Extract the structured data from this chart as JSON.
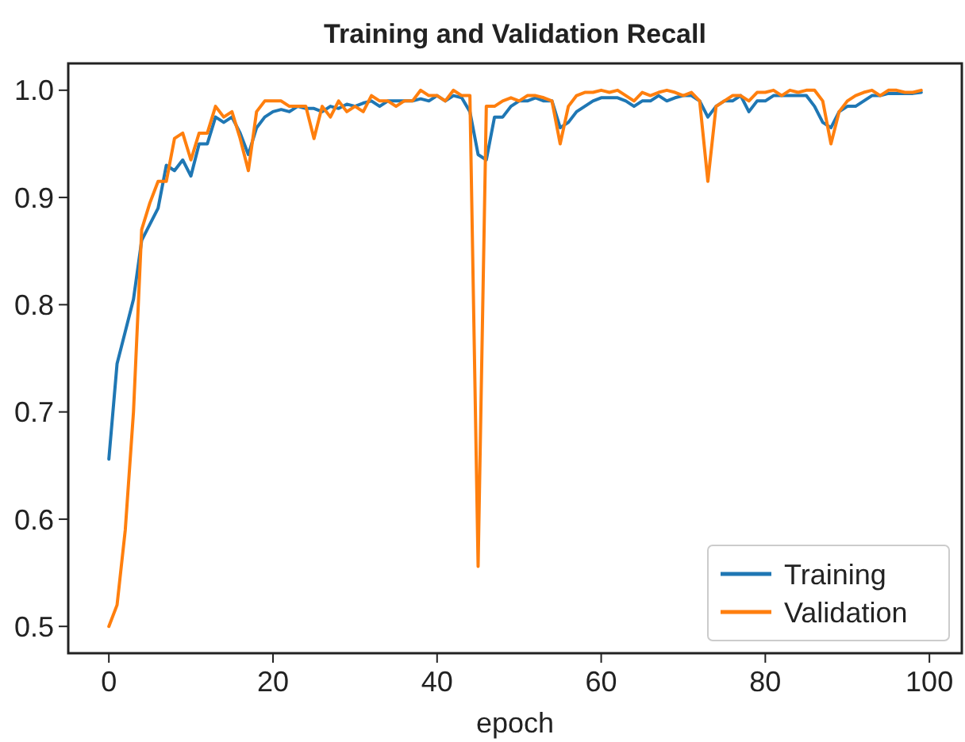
{
  "chart_data": {
    "type": "line",
    "title": "Training and Validation Recall",
    "xlabel": "epoch",
    "x": [
      0,
      1,
      2,
      3,
      4,
      5,
      6,
      7,
      8,
      9,
      10,
      11,
      12,
      13,
      14,
      15,
      16,
      17,
      18,
      19,
      20,
      21,
      22,
      23,
      24,
      25,
      26,
      27,
      28,
      29,
      30,
      31,
      32,
      33,
      34,
      35,
      36,
      37,
      38,
      39,
      40,
      41,
      42,
      43,
      44,
      45,
      46,
      47,
      48,
      49,
      50,
      51,
      52,
      53,
      54,
      55,
      56,
      57,
      58,
      59,
      60,
      61,
      62,
      63,
      64,
      65,
      66,
      67,
      68,
      69,
      70,
      71,
      72,
      73,
      74,
      75,
      76,
      77,
      78,
      79,
      80,
      81,
      82,
      83,
      84,
      85,
      86,
      87,
      88,
      89,
      90,
      91,
      92,
      93,
      94,
      95,
      96,
      97,
      98,
      99
    ],
    "series": [
      {
        "name": "Training",
        "color": "#1f77b4",
        "values": [
          0.656,
          0.745,
          0.775,
          0.805,
          0.86,
          0.875,
          0.89,
          0.93,
          0.925,
          0.935,
          0.92,
          0.95,
          0.95,
          0.975,
          0.97,
          0.975,
          0.96,
          0.94,
          0.965,
          0.975,
          0.98,
          0.982,
          0.98,
          0.985,
          0.983,
          0.983,
          0.98,
          0.985,
          0.983,
          0.987,
          0.985,
          0.988,
          0.99,
          0.985,
          0.99,
          0.99,
          0.99,
          0.99,
          0.992,
          0.99,
          0.995,
          0.99,
          0.995,
          0.993,
          0.98,
          0.94,
          0.935,
          0.975,
          0.975,
          0.985,
          0.99,
          0.99,
          0.993,
          0.99,
          0.99,
          0.965,
          0.97,
          0.98,
          0.985,
          0.99,
          0.993,
          0.993,
          0.993,
          0.99,
          0.985,
          0.99,
          0.99,
          0.995,
          0.99,
          0.993,
          0.995,
          0.995,
          0.99,
          0.975,
          0.985,
          0.99,
          0.99,
          0.995,
          0.98,
          0.99,
          0.99,
          0.995,
          0.995,
          0.995,
          0.995,
          0.995,
          0.985,
          0.97,
          0.965,
          0.98,
          0.985,
          0.985,
          0.99,
          0.995,
          0.995,
          0.997,
          0.997,
          0.997,
          0.997,
          0.998
        ]
      },
      {
        "name": "Validation",
        "color": "#ff7f0e",
        "values": [
          0.5,
          0.52,
          0.59,
          0.7,
          0.87,
          0.895,
          0.915,
          0.915,
          0.955,
          0.96,
          0.935,
          0.96,
          0.96,
          0.985,
          0.975,
          0.98,
          0.955,
          0.925,
          0.98,
          0.99,
          0.99,
          0.99,
          0.985,
          0.985,
          0.985,
          0.955,
          0.985,
          0.975,
          0.99,
          0.98,
          0.985,
          0.98,
          0.995,
          0.99,
          0.99,
          0.985,
          0.99,
          0.99,
          1.0,
          0.995,
          0.995,
          0.99,
          1.0,
          0.995,
          0.995,
          0.556,
          0.985,
          0.985,
          0.99,
          0.993,
          0.99,
          0.995,
          0.995,
          0.993,
          0.99,
          0.95,
          0.985,
          0.995,
          0.998,
          0.998,
          1.0,
          0.998,
          1.0,
          0.995,
          0.99,
          0.998,
          0.995,
          0.998,
          1.0,
          0.998,
          0.995,
          0.998,
          0.99,
          0.915,
          0.985,
          0.99,
          0.995,
          0.995,
          0.99,
          0.998,
          0.998,
          1.0,
          0.995,
          1.0,
          0.998,
          1.0,
          1.0,
          0.99,
          0.95,
          0.98,
          0.99,
          0.995,
          0.998,
          1.0,
          0.995,
          1.0,
          1.0,
          0.998,
          0.998,
          1.0
        ]
      }
    ],
    "xlim": [
      -4.95,
      103.95
    ],
    "ylim": [
      0.475,
      1.025
    ],
    "xticks": [
      0,
      20,
      40,
      60,
      80,
      100
    ],
    "yticks": [
      {
        "value": 0.5,
        "label": "0.5"
      },
      {
        "value": 0.6,
        "label": "0.6"
      },
      {
        "value": 0.7,
        "label": "0.7"
      },
      {
        "value": 0.8,
        "label": "0.8"
      },
      {
        "value": 0.9,
        "label": "0.9"
      },
      {
        "value": 1.0,
        "label": "1.0"
      }
    ],
    "legend": "bottom right",
    "grid": false
  }
}
